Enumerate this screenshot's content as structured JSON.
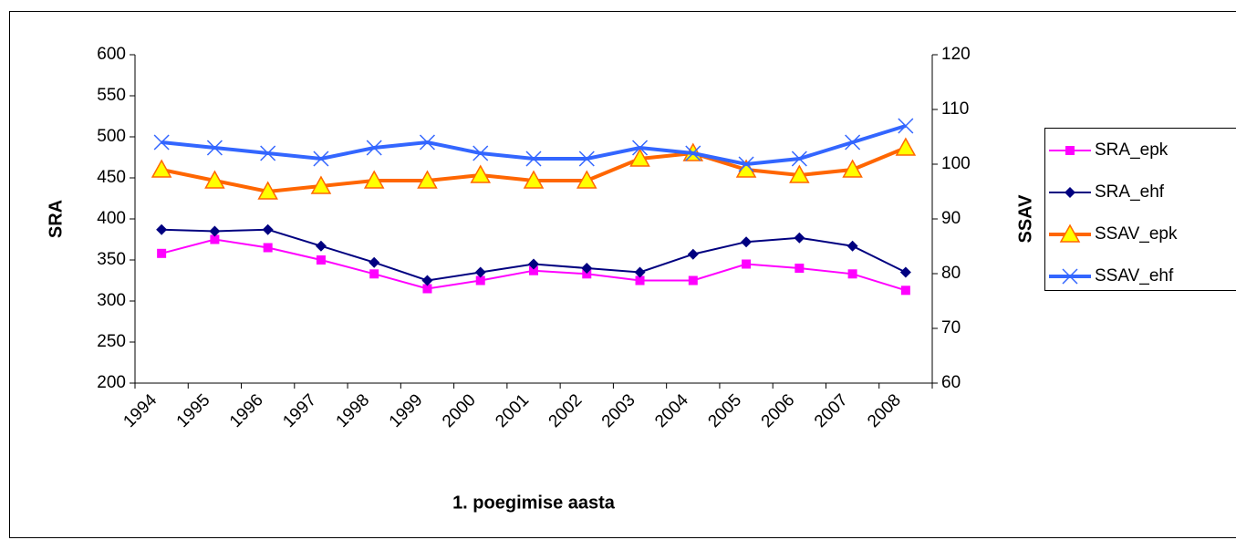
{
  "chart_data": {
    "type": "line",
    "xlabel": "1. poegimise aasta",
    "ylabel": "SRA",
    "y2label": "SSAV",
    "categories": [
      "1994",
      "1995",
      "1996",
      "1997",
      "1998",
      "1999",
      "2000",
      "2001",
      "2002",
      "2003",
      "2004",
      "2005",
      "2006",
      "2007",
      "2008"
    ],
    "series": [
      {
        "name": "SRA_epk",
        "color": "#ff00ff",
        "marker": "square",
        "marker_color": "#ff00ff",
        "values": [
          358,
          375,
          365,
          350,
          333,
          315,
          325,
          337,
          333,
          325,
          325,
          345,
          340,
          333,
          313
        ]
      },
      {
        "name": "SRA_ehf",
        "color": "#000080",
        "marker": "diamond",
        "marker_color": "#000080",
        "values": [
          387,
          385,
          387,
          367,
          347,
          325,
          335,
          345,
          340,
          335,
          357,
          372,
          377,
          367,
          335
        ]
      },
      {
        "name": "SSAV_epk",
        "color": "#ff6600",
        "marker": "triangle",
        "marker_color": "#ffff00",
        "axis": "y2",
        "values": [
          99,
          97,
          95,
          96,
          97,
          97,
          98,
          97,
          97,
          101,
          102,
          99,
          98,
          99,
          103
        ]
      },
      {
        "name": "SSAV_ehf",
        "color": "#3366ff",
        "marker": "x",
        "marker_color": "#3366ff",
        "axis": "y2",
        "values": [
          104,
          103,
          102,
          101,
          103,
          104,
          102,
          101,
          101,
          103,
          102,
          100,
          101,
          104,
          107
        ]
      }
    ],
    "ylim": [
      200,
      600
    ],
    "yticks": [
      200,
      250,
      300,
      350,
      400,
      450,
      500,
      550,
      600
    ],
    "y2lim": [
      60,
      120
    ],
    "y2ticks": [
      60,
      70,
      80,
      90,
      100,
      110,
      120
    ],
    "grid": false,
    "legend": "right"
  }
}
